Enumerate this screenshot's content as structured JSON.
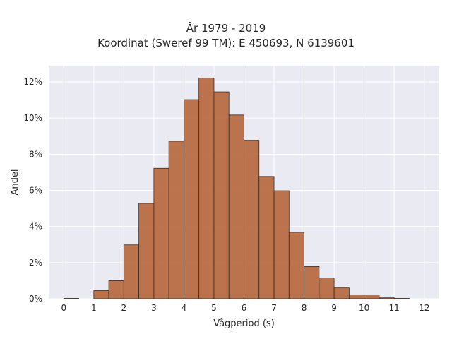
{
  "chart_data": {
    "type": "bar",
    "title": [
      "År 1979 - 2019",
      "Koordinat (Sweref 99 TM): E 450693, N 6139601"
    ],
    "xlabel": "Vågperiod (s)",
    "ylabel": "Andel",
    "xlim": [
      -0.5,
      12.5
    ],
    "ylim": [
      0,
      12.9
    ],
    "x_ticks": [
      0,
      1,
      2,
      3,
      4,
      5,
      6,
      7,
      8,
      9,
      10,
      11,
      12
    ],
    "x_tick_labels": [
      "0",
      "1",
      "2",
      "3",
      "4",
      "5",
      "6",
      "7",
      "8",
      "9",
      "10",
      "11",
      "12"
    ],
    "y_ticks": [
      0,
      2,
      4,
      6,
      8,
      10,
      12
    ],
    "y_tick_labels": [
      "0%",
      "2%",
      "4%",
      "6%",
      "8%",
      "10%",
      "12%"
    ],
    "bin_width": 0.5,
    "bin_starts": [
      0,
      1,
      1.5,
      2,
      2.5,
      3,
      3.5,
      4,
      4.5,
      5,
      5.5,
      6,
      6.5,
      7,
      7.5,
      8,
      8.5,
      9,
      9.5,
      10,
      10.5,
      11
    ],
    "values": [
      0.02,
      0.45,
      1.0,
      2.98,
      5.28,
      7.22,
      8.72,
      11.02,
      12.22,
      11.45,
      10.17,
      8.77,
      6.77,
      5.98,
      3.68,
      1.78,
      1.15,
      0.6,
      0.22,
      0.22,
      0.05,
      0.02
    ],
    "bar_color": "#b86d44",
    "bar_edge_color": "#3a2a20",
    "plot_background": "#eaeaf2",
    "grid": true,
    "grid_color": "#ffffff"
  }
}
